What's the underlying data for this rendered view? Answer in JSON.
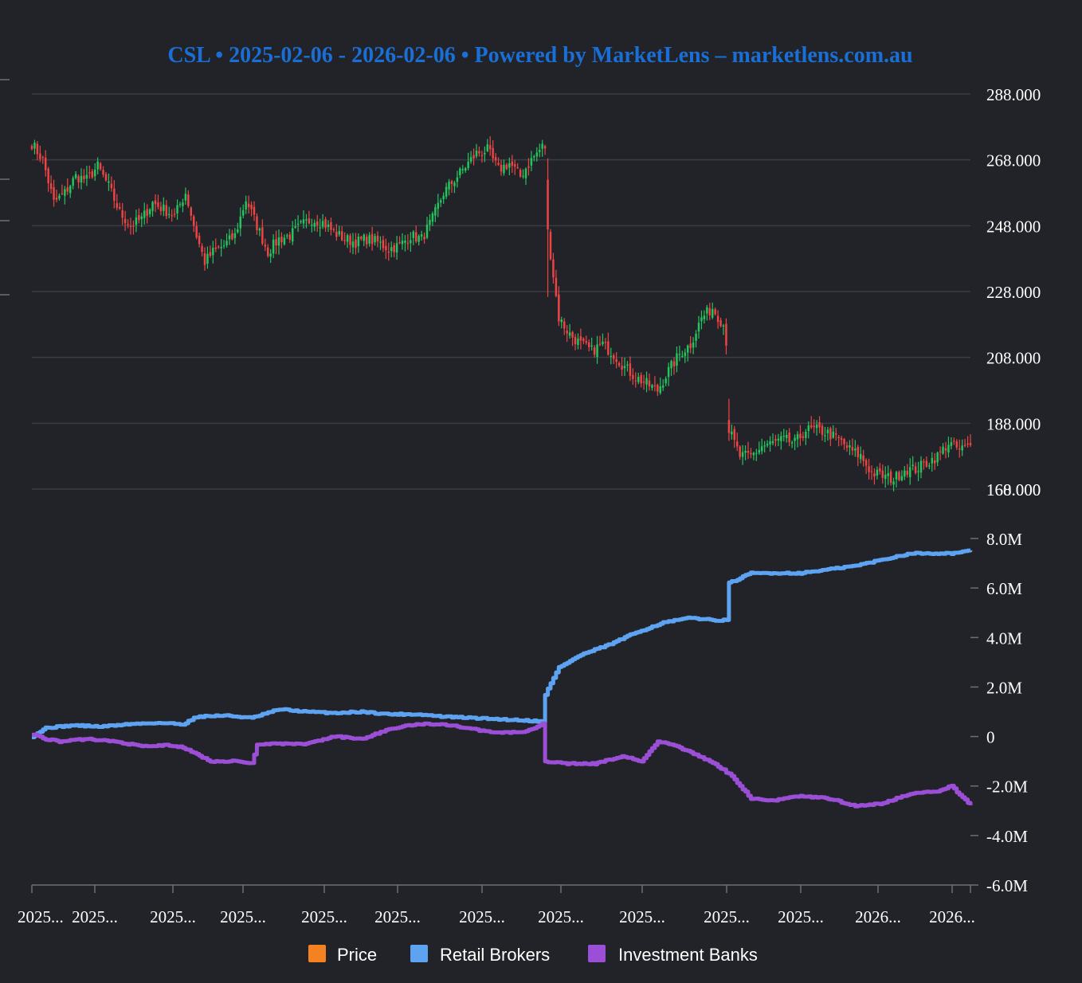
{
  "title": "CSL • 2025-02-06 - 2026-02-06 • Powered by MarketLens – marketlens.com.au",
  "colors": {
    "background": "#212328",
    "title": "#1a6fd6",
    "grid": "#3a3d44",
    "axis_text": "#ffffff",
    "up": "#22c55e",
    "down": "#ef4444",
    "price": "#f58220",
    "retail": "#5ea3f2",
    "banks": "#9b4fd6"
  },
  "legend": [
    {
      "name": "Price",
      "color": "#f58220"
    },
    {
      "name": "Retail Brokers",
      "color": "#5ea3f2"
    },
    {
      "name": "Investment Banks",
      "color": "#9b4fd6"
    }
  ],
  "chart_data": [
    {
      "type": "candlestick",
      "ylim": [
        168,
        288
      ],
      "yticks": [
        "288.000",
        "268.000",
        "248.000",
        "228.000",
        "208.000",
        "188.000",
        "168.000"
      ],
      "extra_ytick": "160.000",
      "anchors": [
        [
          0,
          273
        ],
        [
          4,
          268
        ],
        [
          8,
          255
        ],
        [
          12,
          258
        ],
        [
          16,
          263
        ],
        [
          20,
          262
        ],
        [
          24,
          266
        ],
        [
          28,
          260
        ],
        [
          32,
          252
        ],
        [
          36,
          248
        ],
        [
          40,
          250
        ],
        [
          44,
          255
        ],
        [
          48,
          253
        ],
        [
          52,
          251
        ],
        [
          56,
          258
        ],
        [
          60,
          245
        ],
        [
          63,
          237
        ],
        [
          66,
          240
        ],
        [
          70,
          242
        ],
        [
          74,
          245
        ],
        [
          78,
          256
        ],
        [
          82,
          248
        ],
        [
          86,
          240
        ],
        [
          90,
          244
        ],
        [
          94,
          245
        ],
        [
          98,
          248
        ],
        [
          102,
          250
        ],
        [
          106,
          249
        ],
        [
          110,
          246
        ],
        [
          114,
          244
        ],
        [
          118,
          243
        ],
        [
          122,
          244
        ],
        [
          126,
          243
        ],
        [
          130,
          241
        ],
        [
          134,
          242
        ],
        [
          138,
          245
        ],
        [
          142,
          244
        ],
        [
          146,
          250
        ],
        [
          150,
          258
        ],
        [
          154,
          262
        ],
        [
          158,
          266
        ],
        [
          162,
          270
        ],
        [
          166,
          271
        ],
        [
          170,
          265
        ],
        [
          174,
          267
        ],
        [
          178,
          263
        ],
        [
          182,
          268
        ],
        [
          186,
          272
        ],
        [
          187,
          272
        ],
        [
          188,
          246
        ],
        [
          192,
          220
        ],
        [
          196,
          215
        ],
        [
          200,
          212
        ],
        [
          204,
          210
        ],
        [
          208,
          212
        ],
        [
          212,
          209
        ],
        [
          216,
          205
        ],
        [
          220,
          202
        ],
        [
          224,
          200
        ],
        [
          228,
          198
        ],
        [
          232,
          204
        ],
        [
          236,
          209
        ],
        [
          240,
          212
        ],
        [
          244,
          220
        ],
        [
          248,
          223
        ],
        [
          252,
          218
        ],
        [
          253,
          213
        ],
        [
          254,
          186
        ],
        [
          258,
          178
        ],
        [
          262,
          178
        ],
        [
          266,
          181
        ],
        [
          270,
          182
        ],
        [
          274,
          183
        ],
        [
          278,
          182
        ],
        [
          282,
          186
        ],
        [
          286,
          186
        ],
        [
          290,
          185
        ],
        [
          294,
          183
        ],
        [
          298,
          180
        ],
        [
          302,
          178
        ],
        [
          306,
          173
        ],
        [
          310,
          172
        ],
        [
          314,
          171
        ],
        [
          318,
          174
        ],
        [
          322,
          174
        ],
        [
          326,
          176
        ],
        [
          330,
          178
        ],
        [
          334,
          182
        ],
        [
          338,
          180
        ],
        [
          342,
          181
        ]
      ],
      "n": 343
    },
    {
      "type": "line",
      "ylim": [
        -6000000,
        8000000
      ],
      "yticks": [
        "8.0M",
        "6.0M",
        "4.0M",
        "2.0M",
        "0",
        "-2.0M",
        "-4.0M",
        "-6.0M"
      ],
      "x_tick_labels": [
        "2025...",
        "2025...",
        "2025...",
        "2025...",
        "2025...",
        "2025...",
        "2025...",
        "2025...",
        "2025...",
        "2025...",
        "2025...",
        "2026...",
        "2026..."
      ],
      "series": [
        {
          "name": "Retail Brokers",
          "points": [
            [
              0,
              0
            ],
            [
              5,
              350000
            ],
            [
              15,
              450000
            ],
            [
              25,
              400000
            ],
            [
              35,
              500000
            ],
            [
              45,
              550000
            ],
            [
              55,
              500000
            ],
            [
              60,
              800000
            ],
            [
              70,
              850000
            ],
            [
              80,
              750000
            ],
            [
              90,
              1100000
            ],
            [
              100,
              1000000
            ],
            [
              110,
              950000
            ],
            [
              120,
              1000000
            ],
            [
              130,
              900000
            ],
            [
              140,
              900000
            ],
            [
              150,
              800000
            ],
            [
              160,
              750000
            ],
            [
              170,
              700000
            ],
            [
              180,
              650000
            ],
            [
              186,
              600000
            ],
            [
              187,
              1700000
            ],
            [
              192,
              2800000
            ],
            [
              200,
              3300000
            ],
            [
              210,
              3700000
            ],
            [
              220,
              4200000
            ],
            [
              230,
              4600000
            ],
            [
              240,
              4800000
            ],
            [
              248,
              4700000
            ],
            [
              253,
              4700000
            ],
            [
              254,
              6200000
            ],
            [
              262,
              6600000
            ],
            [
              280,
              6600000
            ],
            [
              300,
              6900000
            ],
            [
              320,
              7400000
            ],
            [
              335,
              7400000
            ],
            [
              342,
              7500000
            ]
          ]
        },
        {
          "name": "Investment Banks",
          "points": [
            [
              0,
              100000
            ],
            [
              5,
              -100000
            ],
            [
              10,
              -200000
            ],
            [
              20,
              -100000
            ],
            [
              30,
              -200000
            ],
            [
              40,
              -400000
            ],
            [
              50,
              -350000
            ],
            [
              55,
              -450000
            ],
            [
              65,
              -1000000
            ],
            [
              75,
              -1000000
            ],
            [
              80,
              -1100000
            ],
            [
              82,
              -300000
            ],
            [
              90,
              -300000
            ],
            [
              100,
              -300000
            ],
            [
              110,
              0
            ],
            [
              120,
              -100000
            ],
            [
              130,
              300000
            ],
            [
              140,
              500000
            ],
            [
              150,
              500000
            ],
            [
              160,
              300000
            ],
            [
              170,
              150000
            ],
            [
              180,
              200000
            ],
            [
              186,
              500000
            ],
            [
              187,
              -1000000
            ],
            [
              195,
              -1100000
            ],
            [
              205,
              -1100000
            ],
            [
              215,
              -800000
            ],
            [
              222,
              -1000000
            ],
            [
              228,
              -200000
            ],
            [
              235,
              -400000
            ],
            [
              245,
              -900000
            ],
            [
              250,
              -1200000
            ],
            [
              255,
              -1600000
            ],
            [
              262,
              -2500000
            ],
            [
              270,
              -2600000
            ],
            [
              278,
              -2400000
            ],
            [
              290,
              -2500000
            ],
            [
              300,
              -2800000
            ],
            [
              310,
              -2700000
            ],
            [
              320,
              -2300000
            ],
            [
              330,
              -2200000
            ],
            [
              335,
              -2000000
            ],
            [
              342,
              -2800000
            ]
          ]
        }
      ]
    }
  ]
}
